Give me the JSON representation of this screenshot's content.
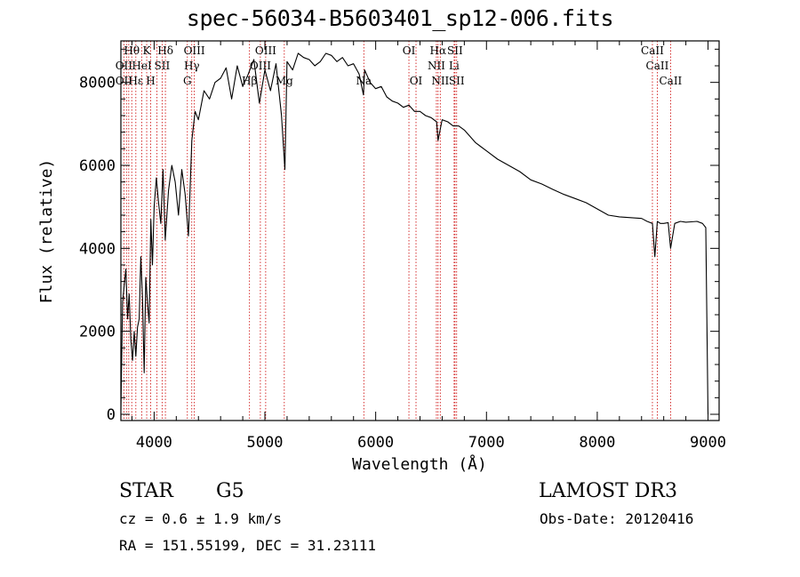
{
  "header": {
    "title": "spec-56034-B5603401_sp12-006.fits"
  },
  "chart_data": {
    "type": "line",
    "title": "spec-56034-B5603401_sp12-006.fits",
    "xlabel": "Wavelength (Å)",
    "ylabel": "Flux (relative)",
    "xlim": [
      3700,
      9100
    ],
    "ylim": [
      -150,
      9000
    ],
    "xticks": [
      4000,
      5000,
      6000,
      7000,
      8000,
      9000
    ],
    "xtick_labels": [
      "4000",
      "5000",
      "6000",
      "7000",
      "8000",
      "9000"
    ],
    "yticks": [
      0,
      2000,
      4000,
      6000,
      8000
    ],
    "ytick_labels": [
      "0",
      "2000",
      "4000",
      "6000",
      "8000"
    ],
    "series": [
      {
        "name": "flux",
        "x": [
          3700,
          3715,
          3730,
          3745,
          3760,
          3775,
          3790,
          3805,
          3820,
          3835,
          3850,
          3865,
          3880,
          3895,
          3910,
          3925,
          3940,
          3955,
          3970,
          3985,
          4000,
          4020,
          4040,
          4060,
          4080,
          4100,
          4130,
          4160,
          4190,
          4220,
          4250,
          4280,
          4310,
          4340,
          4370,
          4400,
          4450,
          4500,
          4550,
          4600,
          4650,
          4700,
          4750,
          4800,
          4850,
          4900,
          4950,
          5000,
          5050,
          5100,
          5150,
          5180,
          5200,
          5250,
          5300,
          5350,
          5400,
          5450,
          5500,
          5550,
          5600,
          5650,
          5700,
          5750,
          5800,
          5850,
          5890,
          5900,
          5950,
          6000,
          6050,
          6100,
          6150,
          6200,
          6250,
          6300,
          6350,
          6400,
          6450,
          6500,
          6550,
          6563,
          6600,
          6650,
          6700,
          6750,
          6800,
          6850,
          6900,
          6950,
          7000,
          7100,
          7200,
          7300,
          7400,
          7500,
          7600,
          7700,
          7800,
          7900,
          8000,
          8100,
          8200,
          8300,
          8400,
          8450,
          8498,
          8520,
          8542,
          8570,
          8600,
          8640,
          8662,
          8700,
          8750,
          8800,
          8850,
          8900,
          8950,
          8980,
          9000
        ],
        "y": [
          100,
          2700,
          3100,
          3500,
          2300,
          2900,
          1800,
          1300,
          2000,
          1400,
          2100,
          2300,
          3800,
          2800,
          1000,
          3300,
          2700,
          2200,
          4700,
          3600,
          5000,
          5700,
          5100,
          4600,
          5900,
          4200,
          5400,
          6000,
          5600,
          4800,
          5900,
          5300,
          4300,
          6600,
          7300,
          7100,
          7800,
          7600,
          8000,
          8100,
          8350,
          7600,
          8400,
          7900,
          8200,
          8550,
          7500,
          8300,
          7800,
          8450,
          7200,
          5900,
          8500,
          8300,
          8700,
          8600,
          8550,
          8400,
          8500,
          8700,
          8650,
          8500,
          8600,
          8400,
          8450,
          8200,
          7700,
          8300,
          8000,
          7850,
          7900,
          7650,
          7550,
          7500,
          7400,
          7450,
          7300,
          7300,
          7200,
          7150,
          7050,
          6600,
          7100,
          7050,
          6950,
          6950,
          6850,
          6700,
          6550,
          6450,
          6350,
          6150,
          6000,
          5850,
          5650,
          5550,
          5420,
          5300,
          5200,
          5100,
          4950,
          4800,
          4760,
          4740,
          4720,
          4650,
          4600,
          3800,
          4650,
          4600,
          4600,
          4620,
          4000,
          4600,
          4650,
          4630,
          4640,
          4650,
          4600,
          4500,
          0
        ]
      }
    ],
    "absorption_lines": {
      "wavelengths": [
        3727,
        3750,
        3771,
        3798,
        3835,
        3889,
        3933,
        3969,
        4026,
        4072,
        4102,
        4300,
        4340,
        4363,
        4861,
        4959,
        5007,
        5175,
        5893,
        6300,
        6364,
        6548,
        6563,
        6583,
        6708,
        6716,
        6731,
        8498,
        8542,
        8662
      ],
      "labels": [
        {
          "text": "Hθ",
          "row": 0,
          "wl": 3798
        },
        {
          "text": "K",
          "row": 0,
          "wl": 3933
        },
        {
          "text": "Hδ",
          "row": 0,
          "wl": 4102
        },
        {
          "text": "OIII",
          "row": 0,
          "wl": 4363
        },
        {
          "text": "OIII",
          "row": 0,
          "wl": 5007
        },
        {
          "text": "OI",
          "row": 0,
          "wl": 6300
        },
        {
          "text": "Hα",
          "row": 0,
          "wl": 6563
        },
        {
          "text": "SII",
          "row": 0,
          "wl": 6716
        },
        {
          "text": "CaII",
          "row": 0,
          "wl": 8498
        },
        {
          "text": "OII",
          "row": 1,
          "wl": 3727
        },
        {
          "text": "HeI",
          "row": 1,
          "wl": 3889
        },
        {
          "text": "SII",
          "row": 1,
          "wl": 4072
        },
        {
          "text": "Hγ",
          "row": 1,
          "wl": 4340
        },
        {
          "text": "OIII",
          "row": 1,
          "wl": 4959
        },
        {
          "text": "NII",
          "row": 1,
          "wl": 6548
        },
        {
          "text": "Li",
          "row": 1,
          "wl": 6708
        },
        {
          "text": "CaII",
          "row": 1,
          "wl": 8542
        },
        {
          "text": "OII",
          "row": 2,
          "wl": 3727
        },
        {
          "text": "Hε",
          "row": 2,
          "wl": 3835
        },
        {
          "text": "H",
          "row": 2,
          "wl": 3969
        },
        {
          "text": "G",
          "row": 2,
          "wl": 4300
        },
        {
          "text": "Hβ",
          "row": 2,
          "wl": 4861
        },
        {
          "text": "Mg",
          "row": 2,
          "wl": 5175
        },
        {
          "text": "Na",
          "row": 2,
          "wl": 5893
        },
        {
          "text": "OI",
          "row": 2,
          "wl": 6364
        },
        {
          "text": "NII",
          "row": 2,
          "wl": 6583
        },
        {
          "text": "SII",
          "row": 2,
          "wl": 6731
        },
        {
          "text": "CaII",
          "row": 2,
          "wl": 8662
        }
      ]
    }
  },
  "info": {
    "class_label": "STAR",
    "subclass": "G5",
    "survey": "LAMOST DR3",
    "cz": "cz = 0.6 ± 1.9 km/s",
    "obs_date": "Obs-Date: 20120416",
    "coords": "RA = 151.55199, DEC =  31.23111"
  },
  "colors": {
    "line": "#000000",
    "marker": "#cc0000",
    "axes": "#000000"
  }
}
